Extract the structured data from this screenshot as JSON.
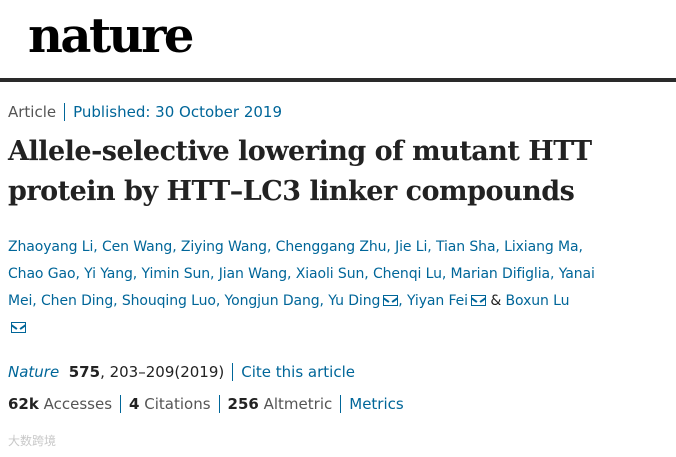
{
  "masthead": {
    "logo": "nature"
  },
  "article_meta": {
    "type": "Article",
    "published": "Published: 30 October 2019"
  },
  "title_line1": "Allele-selective lowering of mutant HTT",
  "title_line2": "protein by HTT–LC3 linker compounds",
  "authors": {
    "list": [
      "Zhaoyang Li",
      "Cen Wang",
      "Ziying Wang",
      "Chenggang Zhu",
      "Jie Li",
      "Tian Sha",
      "Lixiang Ma",
      "Chao Gao",
      "Yi Yang",
      "Yimin Sun",
      "Jian Wang",
      "Xiaoli Sun",
      "Chenqi Lu",
      "Marian Difiglia",
      "Yanai Mei",
      "Chen Ding",
      "Shouqing Luo",
      "Yongjun Dang",
      "Yu Ding",
      "Yiyan Fei"
    ],
    "amp": "&",
    "last": "Boxun Lu"
  },
  "citation": {
    "journal": "Nature",
    "volume": "575",
    "pages": ", 203–209(2019)",
    "cite_link": "Cite this article"
  },
  "metrics": {
    "accesses_value": "62k",
    "accesses_label": "Accesses",
    "citations_value": "4",
    "citations_label": "Citations",
    "altmetric_value": "256",
    "altmetric_label": "Altmetric",
    "metrics_link": "Metrics"
  },
  "watermark": "大数跨境",
  "colors": {
    "link": "#006699",
    "text": "#222222",
    "rule": "#2a2a2a"
  },
  "icons": {
    "corresponding_author": "envelope-icon"
  }
}
